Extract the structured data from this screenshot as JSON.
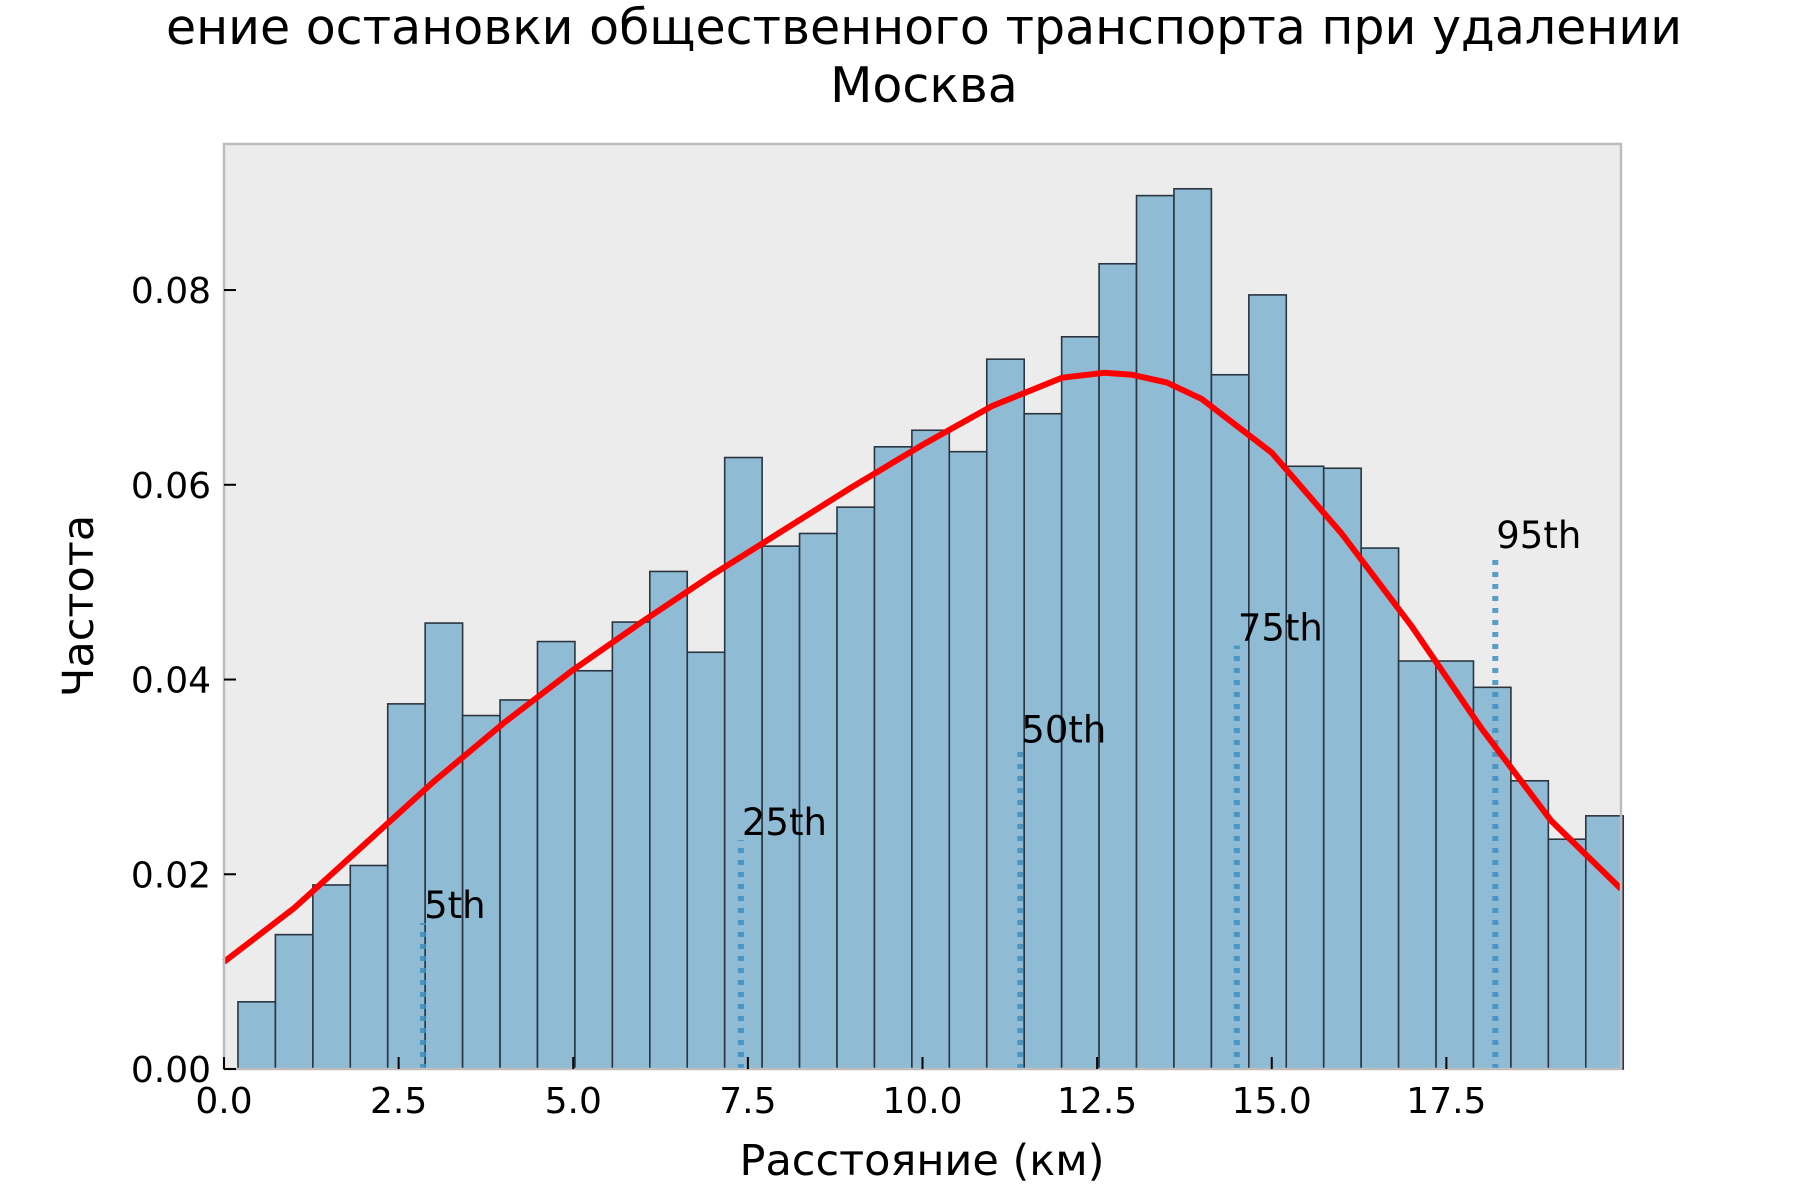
{
  "chart_data": {
    "type": "bar",
    "title_line1": "ение остановки общественного транспорта при удалении",
    "title_line2": "Москва",
    "xlabel": "Расстояние (км)",
    "ylabel": "Частота",
    "xlim": [
      0,
      20
    ],
    "ylim": [
      0,
      0.095
    ],
    "xticks": [
      "0.0",
      "2.5",
      "5.0",
      "7.5",
      "10.0",
      "12.5",
      "15.0",
      "17.5"
    ],
    "yticks": [
      "0.00",
      "0.02",
      "0.04",
      "0.06",
      "0.08"
    ],
    "grid": false,
    "bin_start": 0.2,
    "bin_width": 0.536,
    "values": [
      0.0069,
      0.0138,
      0.0189,
      0.0209,
      0.0375,
      0.0458,
      0.0363,
      0.0379,
      0.0439,
      0.0409,
      0.0459,
      0.0511,
      0.0428,
      0.0628,
      0.0537,
      0.055,
      0.0577,
      0.0639,
      0.0656,
      0.0634,
      0.0729,
      0.0673,
      0.0752,
      0.0827,
      0.0897,
      0.0904,
      0.0713,
      0.0795,
      0.0619,
      0.0617,
      0.0535,
      0.0419,
      0.0419,
      0.0392,
      0.0296,
      0.0236,
      0.026
    ],
    "density_curve": {
      "color": "#ff0000",
      "x": [
        0,
        1,
        2,
        3,
        4,
        5,
        6,
        7,
        8,
        9,
        10,
        11,
        12,
        12.6,
        13,
        13.5,
        14,
        15,
        16,
        17,
        18,
        19,
        20
      ],
      "y": [
        0.011,
        0.0165,
        0.023,
        0.0295,
        0.0355,
        0.041,
        0.046,
        0.0508,
        0.0553,
        0.0598,
        0.0641,
        0.0681,
        0.071,
        0.0715,
        0.0713,
        0.0705,
        0.0688,
        0.0633,
        0.055,
        0.0455,
        0.035,
        0.0255,
        0.0185
      ]
    },
    "percentiles": [
      {
        "label": "5th",
        "x": 2.85,
        "height": 0.015
      },
      {
        "label": "25th",
        "x": 7.4,
        "height": 0.0235
      },
      {
        "label": "50th",
        "x": 11.4,
        "height": 0.033
      },
      {
        "label": "75th",
        "x": 14.5,
        "height": 0.0435
      },
      {
        "label": "95th",
        "x": 18.2,
        "height": 0.053
      }
    ],
    "colors": {
      "bar_fill": "#90bbd5",
      "bar_edge": "#2a3540",
      "plot_background": "#ececec",
      "percentile_line": "#3f8fc2"
    }
  }
}
